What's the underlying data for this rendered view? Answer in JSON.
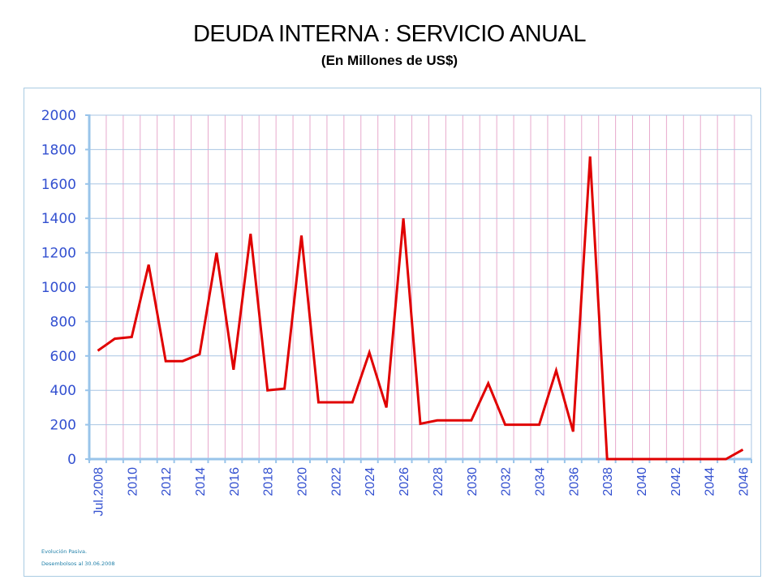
{
  "chart_data": {
    "type": "line",
    "title": "DEUDA INTERNA : SERVICIO ANUAL",
    "subtitle": "(En Millones de US$)",
    "xlabel": "",
    "ylabel": "",
    "ylim": [
      0,
      2000
    ],
    "yticks": [
      "0",
      "200",
      "400",
      "600",
      "800",
      "1000",
      "1200",
      "1400",
      "1600",
      "1800",
      "2000"
    ],
    "ytick_values": [
      0,
      200,
      400,
      600,
      800,
      1000,
      1200,
      1400,
      1600,
      1800,
      2000
    ],
    "categories": [
      "Jul.2008",
      "2009",
      "2010",
      "2011",
      "2012",
      "2013",
      "2014",
      "2015",
      "2016",
      "2017",
      "2018",
      "2019",
      "2020",
      "2021",
      "2022",
      "2023",
      "2024",
      "2025",
      "2026",
      "2027",
      "2028",
      "2029",
      "2030",
      "2031",
      "2032",
      "2033",
      "2034",
      "2035",
      "2036",
      "2037",
      "2038",
      "2039",
      "2040",
      "2041",
      "2042",
      "2043",
      "2044",
      "2045",
      "2046"
    ],
    "xtick_labels_shown": [
      "Jul.2008",
      "2010",
      "2012",
      "2014",
      "2016",
      "2018",
      "2020",
      "2022",
      "2024",
      "2026",
      "2028",
      "2030",
      "2032",
      "2034",
      "2036",
      "2038",
      "2040",
      "2042",
      "2044",
      "2046"
    ],
    "series": [
      {
        "name": "Servicio anual",
        "color": "#e00000",
        "values": [
          630,
          700,
          710,
          1130,
          570,
          570,
          610,
          1200,
          520,
          1310,
          400,
          410,
          1300,
          330,
          330,
          330,
          620,
          300,
          1400,
          205,
          225,
          225,
          225,
          440,
          200,
          200,
          200,
          515,
          160,
          1760,
          0,
          0,
          0,
          0,
          0,
          0,
          0,
          0,
          55
        ]
      }
    ],
    "grid": true,
    "legend": "none",
    "colors": {
      "axis": "#99c4ea",
      "hgrid": "#a9c6e3",
      "vgrid": "#e7a9cc",
      "tick_text": "#3350d0",
      "frame": "#a9cbe3"
    }
  },
  "notes": {
    "line1": "Evolución Pasiva.",
    "line2": "Desembolsos al 30.06.2008"
  }
}
